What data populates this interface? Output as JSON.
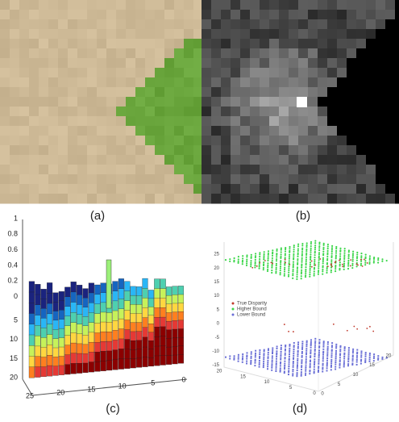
{
  "panels": [
    {
      "label": "(a)"
    },
    {
      "label": "(b)"
    },
    {
      "label": "(c)"
    },
    {
      "label": "(d)"
    }
  ],
  "plot_c": {
    "z_ticks": [
      1,
      0.8,
      0.6,
      0.4,
      0.2,
      0
    ],
    "y_ticks": [
      5,
      10,
      15,
      20
    ],
    "x_ticks": [
      25,
      20,
      15,
      10,
      5,
      0
    ]
  },
  "plot_d": {
    "z_ticks": [
      25,
      20,
      15,
      10,
      5,
      0,
      -5,
      -10,
      -15
    ],
    "x_ticks": [
      20,
      15,
      10,
      5,
      0
    ],
    "y_ticks": [
      0,
      5,
      10,
      15,
      20
    ],
    "legend": [
      "True Disparity",
      "Higher Bound",
      "Lower Bound"
    ]
  }
}
